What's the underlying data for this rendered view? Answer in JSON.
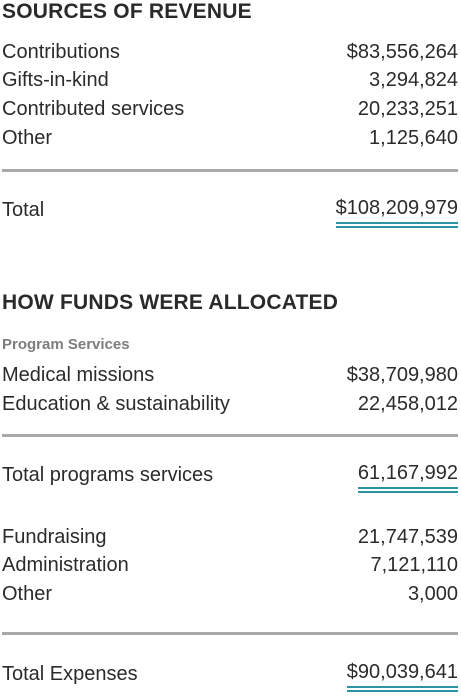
{
  "revenue": {
    "heading": "SOURCES OF REVENUE",
    "items": [
      {
        "label": "Contributions",
        "value": "$83,556,264"
      },
      {
        "label": "Gifts-in-kind",
        "value": "3,294,824"
      },
      {
        "label": "Contributed services",
        "value": "20,233,251"
      },
      {
        "label": "Other",
        "value": "1,125,640"
      }
    ],
    "total": {
      "label": "Total",
      "value": "$108,209,979"
    }
  },
  "allocation": {
    "heading": "HOW FUNDS WERE ALLOCATED",
    "program_heading": "Program Services",
    "program_items": [
      {
        "label": "Medical missions",
        "value": "$38,709,980"
      },
      {
        "label": "Education & sustainability",
        "value": "22,458,012"
      }
    ],
    "program_total": {
      "label": "Total programs services",
      "value": "61,167,992"
    },
    "other_items": [
      {
        "label": "Fundraising",
        "value": "21,747,539"
      },
      {
        "label": "Administration",
        "value": "7,121,110"
      },
      {
        "label": "Other",
        "value": "3,000"
      }
    ],
    "total": {
      "label": "Total Expenses",
      "value": "$90,039,641"
    }
  },
  "colors": {
    "underline_accent": "#2b93a1",
    "rule": "#a9a9a9",
    "subheading": "#7d7d7d"
  }
}
